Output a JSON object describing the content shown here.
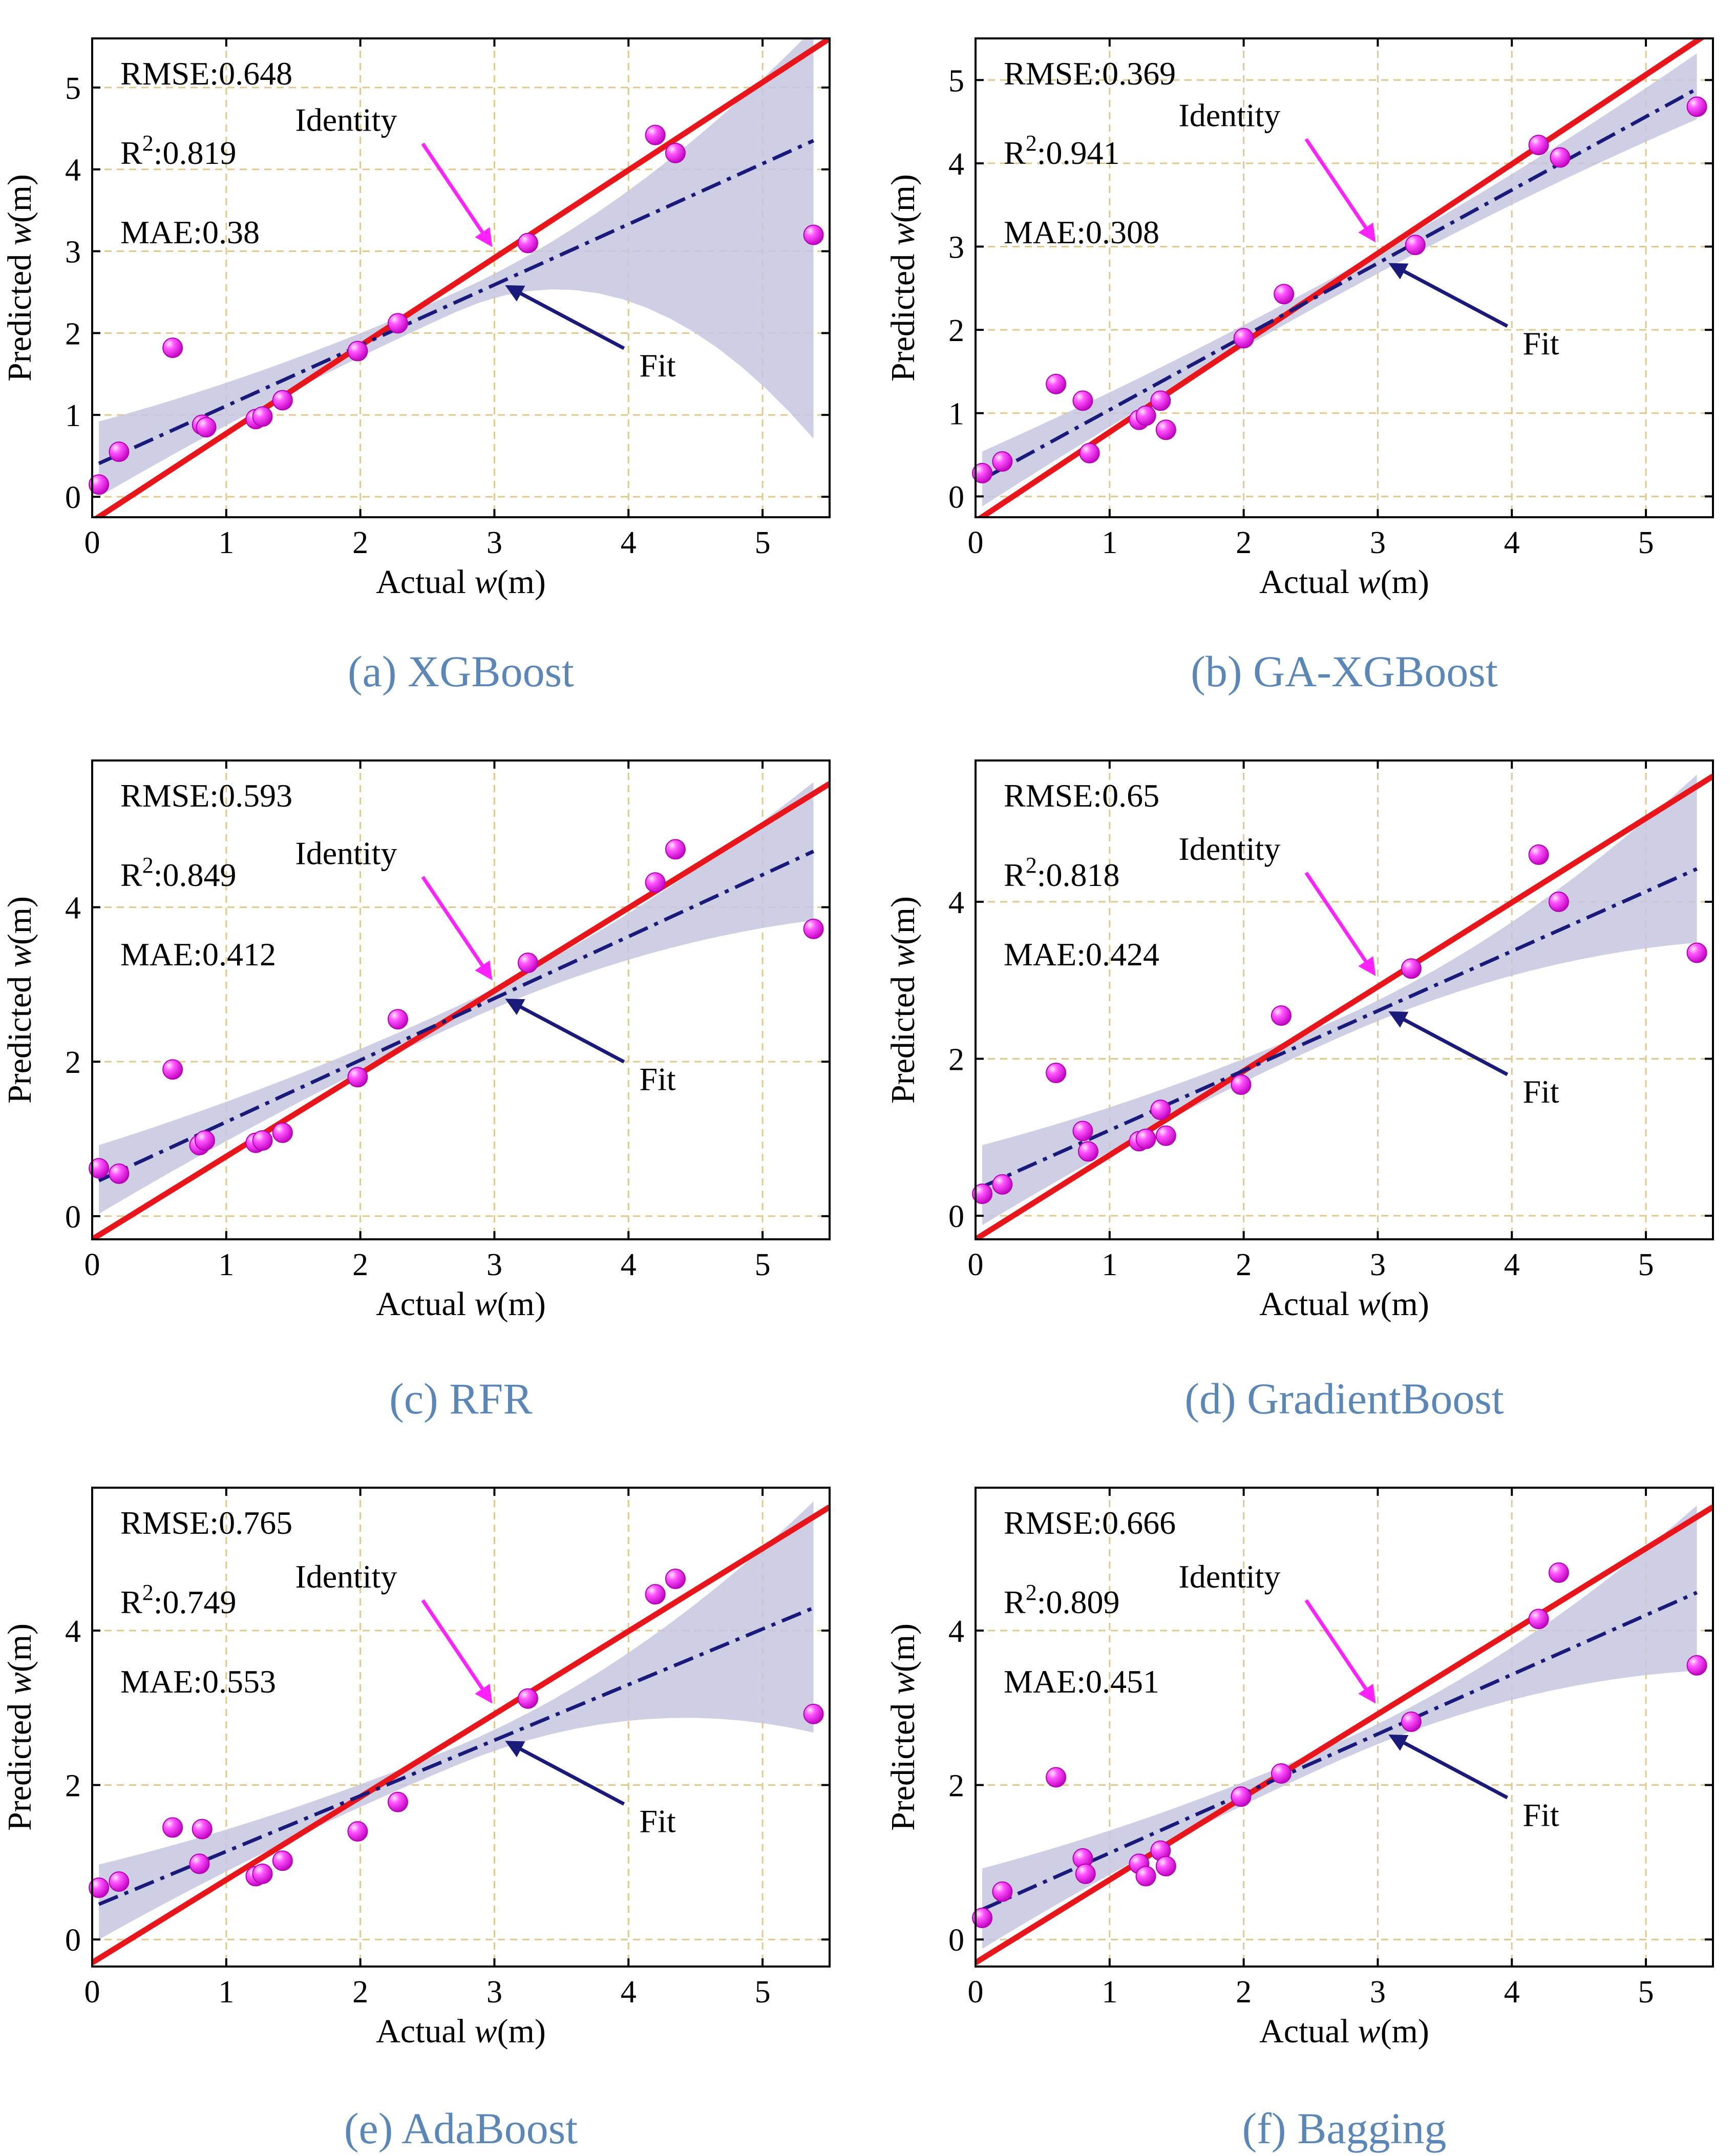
{
  "chart_data": [
    {
      "type": "scatter",
      "panel": "a",
      "caption": "(a) XGBoost",
      "model": "XGBoost",
      "xlabel_prefix": "Actual ",
      "xlabel_var": "w",
      "xlabel_suffix": "(m)",
      "ylabel_prefix": "Predicted ",
      "ylabel_var": "w",
      "ylabel_suffix": "(m)",
      "xlim": [
        0,
        5.5
      ],
      "ylim": [
        -0.25,
        5.6
      ],
      "xticks": [
        0,
        1,
        2,
        3,
        4,
        5
      ],
      "yticks": [
        0,
        1,
        2,
        3,
        4,
        5
      ],
      "grid": true,
      "stats": {
        "rmse_label": "RMSE:",
        "rmse": "0.648",
        "r2_label": "R",
        "r2_sup": "2",
        "r2_sep": ":",
        "r2": "0.819",
        "mae_label": "MAE:",
        "mae": "0.38"
      },
      "annotations": {
        "identity": "Identity",
        "fit": "Fit"
      },
      "identity_line": {
        "slope": 1,
        "intercept": 0,
        "color": "#e8161b"
      },
      "fit_line": {
        "slope": 0.74,
        "intercept": 0.37,
        "color": "#1a1a7a"
      },
      "band": {
        "lower": [
          0.12,
          0.83
        ],
        "upper": [
          0.8,
          5.6
        ],
        "color": "#c5c5e0"
      },
      "points": {
        "x": [
          0.05,
          0.2,
          0.6,
          0.82,
          0.85,
          1.22,
          1.27,
          1.42,
          1.98,
          2.28,
          3.25,
          4.2,
          4.35,
          5.38
        ],
        "y": [
          0.15,
          0.55,
          1.82,
          0.88,
          0.85,
          0.95,
          0.98,
          1.18,
          1.78,
          2.12,
          3.1,
          4.42,
          4.2,
          3.2
        ]
      }
    },
    {
      "type": "scatter",
      "panel": "b",
      "caption": "(b) GA-XGBoost",
      "model": "GA-XGBoost",
      "xlabel_prefix": "Actual ",
      "xlabel_var": "w",
      "xlabel_suffix": "(m)",
      "ylabel_prefix": "Predicted ",
      "ylabel_var": "w",
      "ylabel_suffix": "(m)",
      "xlim": [
        0,
        5.5
      ],
      "ylim": [
        -0.25,
        5.5
      ],
      "xticks": [
        0,
        1,
        2,
        3,
        4,
        5
      ],
      "yticks": [
        0,
        1,
        2,
        3,
        4,
        5
      ],
      "grid": true,
      "stats": {
        "rmse_label": "RMSE:",
        "rmse": "0.369",
        "r2_label": "R",
        "r2_sup": "2",
        "r2_sep": ":",
        "r2": "0.941",
        "mae_label": "MAE:",
        "mae": "0.308"
      },
      "annotations": {
        "identity": "Identity",
        "fit": "Fit"
      },
      "identity_line": {
        "slope": 1,
        "intercept": 0,
        "color": "#e8161b"
      },
      "fit_line": {
        "slope": 0.88,
        "intercept": 0.16,
        "color": "#1a1a7a"
      },
      "band": {
        "lower": [
          0.0,
          4.65
        ],
        "upper": [
          0.42,
          5.2
        ],
        "color": "#c5c5e0"
      },
      "points": {
        "x": [
          0.05,
          0.2,
          0.6,
          0.8,
          0.85,
          1.22,
          1.27,
          1.38,
          1.42,
          2.0,
          2.3,
          3.28,
          4.2,
          4.36,
          5.38
        ],
        "y": [
          0.28,
          0.42,
          1.35,
          1.15,
          0.52,
          0.92,
          0.97,
          1.15,
          0.8,
          1.9,
          2.43,
          3.02,
          4.22,
          4.07,
          4.68
        ]
      }
    },
    {
      "type": "scatter",
      "panel": "c",
      "caption": "(c) RFR",
      "model": "RFR",
      "xlabel_prefix": "Actual ",
      "xlabel_var": "w",
      "xlabel_suffix": "(m)",
      "ylabel_prefix": "Predicted ",
      "ylabel_var": "w",
      "ylabel_suffix": "(m)",
      "xlim": [
        0,
        5.5
      ],
      "ylim": [
        -0.3,
        5.9
      ],
      "xticks": [
        0,
        1,
        2,
        3,
        4,
        5
      ],
      "yticks": [
        0,
        2,
        4
      ],
      "grid": true,
      "stats": {
        "rmse_label": "RMSE:",
        "rmse": "0.593",
        "r2_label": "R",
        "r2_sup": "2",
        "r2_sep": ":",
        "r2": "0.849",
        "mae_label": "MAE:",
        "mae": "0.412"
      },
      "annotations": {
        "identity": "Identity",
        "fit": "Fit"
      },
      "identity_line": {
        "slope": 1,
        "intercept": 0,
        "color": "#e8161b"
      },
      "fit_line": {
        "slope": 0.8,
        "intercept": 0.42,
        "color": "#1a1a7a"
      },
      "band": {
        "lower": [
          0.15,
          3.95
        ],
        "upper": [
          0.8,
          5.5
        ],
        "color": "#c5c5e0"
      },
      "points": {
        "x": [
          0.05,
          0.2,
          0.6,
          0.8,
          0.84,
          1.22,
          1.27,
          1.42,
          1.98,
          2.28,
          3.25,
          4.2,
          4.35,
          5.38
        ],
        "y": [
          0.62,
          0.55,
          1.9,
          0.92,
          0.98,
          0.95,
          0.98,
          1.08,
          1.8,
          2.55,
          3.28,
          4.32,
          4.75,
          3.72
        ]
      }
    },
    {
      "type": "scatter",
      "panel": "d",
      "caption": "(d) GradientBoost",
      "model": "GradientBoost",
      "xlabel_prefix": "Actual ",
      "xlabel_var": "w",
      "xlabel_suffix": "(m)",
      "ylabel_prefix": "Predicted ",
      "ylabel_var": "w",
      "ylabel_suffix": "(m)",
      "xlim": [
        0,
        5.5
      ],
      "ylim": [
        -0.3,
        5.8
      ],
      "xticks": [
        0,
        1,
        2,
        3,
        4,
        5
      ],
      "yticks": [
        0,
        2,
        4
      ],
      "grid": true,
      "stats": {
        "rmse_label": "RMSE:",
        "rmse": "0.65",
        "r2_label": "R",
        "r2_sup": "2",
        "r2_sep": ":",
        "r2": "0.818",
        "mae_label": "MAE:",
        "mae": "0.424"
      },
      "annotations": {
        "identity": "Identity",
        "fit": "Fit"
      },
      "identity_line": {
        "slope": 1,
        "intercept": 0,
        "color": "#e8161b"
      },
      "fit_line": {
        "slope": 0.76,
        "intercept": 0.33,
        "color": "#1a1a7a"
      },
      "band": {
        "lower": [
          0.0,
          3.6
        ],
        "upper": [
          0.78,
          5.5
        ],
        "color": "#c5c5e0"
      },
      "points": {
        "x": [
          0.05,
          0.2,
          0.6,
          0.8,
          0.84,
          1.22,
          1.27,
          1.38,
          1.42,
          1.98,
          2.28,
          3.25,
          4.2,
          4.35,
          5.38
        ],
        "y": [
          0.28,
          0.4,
          1.82,
          1.08,
          0.82,
          0.95,
          0.98,
          1.35,
          1.02,
          1.67,
          2.55,
          3.15,
          4.6,
          4.0,
          3.35
        ]
      }
    },
    {
      "type": "scatter",
      "panel": "e",
      "caption": "(e) AdaBoost",
      "model": "AdaBoost",
      "xlabel_prefix": "Actual ",
      "xlabel_var": "w",
      "xlabel_suffix": "(m)",
      "ylabel_prefix": "Predicted ",
      "ylabel_var": "w",
      "ylabel_suffix": "(m)",
      "xlim": [
        0,
        5.5
      ],
      "ylim": [
        -0.35,
        5.85
      ],
      "xticks": [
        0,
        1,
        2,
        3,
        4,
        5
      ],
      "yticks": [
        0,
        2,
        4
      ],
      "grid": true,
      "stats": {
        "rmse_label": "RMSE:",
        "rmse": "0.765",
        "r2_label": "R",
        "r2_sup": "2",
        "r2_sep": ":",
        "r2": "0.749",
        "mae_label": "MAE:",
        "mae": "0.553"
      },
      "annotations": {
        "identity": "Identity",
        "fit": "Fit"
      },
      "identity_line": {
        "slope": 1,
        "intercept": 0,
        "color": "#e8161b"
      },
      "fit_line": {
        "slope": 0.72,
        "intercept": 0.42,
        "color": "#1a1a7a"
      },
      "band": {
        "lower": [
          0.12,
          2.8
        ],
        "upper": [
          0.85,
          5.55
        ],
        "color": "#c5c5e0"
      },
      "points": {
        "x": [
          0.05,
          0.2,
          0.6,
          0.8,
          0.82,
          1.22,
          1.27,
          1.42,
          1.98,
          2.28,
          3.25,
          4.2,
          4.35,
          5.38
        ],
        "y": [
          0.67,
          0.75,
          1.45,
          0.98,
          1.43,
          0.82,
          0.85,
          1.02,
          1.4,
          1.78,
          3.12,
          4.47,
          4.67,
          2.92
        ]
      }
    },
    {
      "type": "scatter",
      "panel": "f",
      "caption": "(f) Bagging",
      "model": "Bagging",
      "xlabel_prefix": "Actual ",
      "xlabel_var": "w",
      "xlabel_suffix": "(m)",
      "ylabel_prefix": "Predicted ",
      "ylabel_var": "w",
      "ylabel_suffix": "(m)",
      "xlim": [
        0,
        5.5
      ],
      "ylim": [
        -0.35,
        5.85
      ],
      "xticks": [
        0,
        1,
        2,
        3,
        4,
        5
      ],
      "yticks": [
        0,
        2,
        4
      ],
      "grid": true,
      "stats": {
        "rmse_label": "RMSE:",
        "rmse": "0.666",
        "r2_label": "R",
        "r2_sup": "2",
        "r2_sep": ":",
        "r2": "0.809",
        "mae_label": "MAE:",
        "mae": "0.451"
      },
      "annotations": {
        "identity": "Identity",
        "fit": "Fit"
      },
      "identity_line": {
        "slope": 1,
        "intercept": 0,
        "color": "#e8161b"
      },
      "fit_line": {
        "slope": 0.77,
        "intercept": 0.35,
        "color": "#1a1a7a"
      },
      "band": {
        "lower": [
          0.0,
          3.6
        ],
        "upper": [
          0.8,
          5.5
        ],
        "color": "#c5c5e0"
      },
      "points": {
        "x": [
          0.05,
          0.2,
          0.6,
          0.8,
          0.82,
          1.22,
          1.27,
          1.38,
          1.42,
          1.98,
          2.28,
          3.25,
          4.2,
          4.35,
          5.38
        ],
        "y": [
          0.28,
          0.62,
          2.1,
          1.05,
          0.85,
          0.98,
          0.82,
          1.15,
          0.95,
          1.85,
          2.15,
          2.82,
          4.15,
          4.75,
          3.55
        ]
      }
    }
  ],
  "colors": {
    "point_fill": "#ee22ee",
    "point_highlight": "#ffccff",
    "point_edge": "#b300b3",
    "identity_arrow": "#ff22ff",
    "fit_arrow": "#1a1a7a",
    "grid": "#e0c98a",
    "caption": "#5a86b8"
  }
}
